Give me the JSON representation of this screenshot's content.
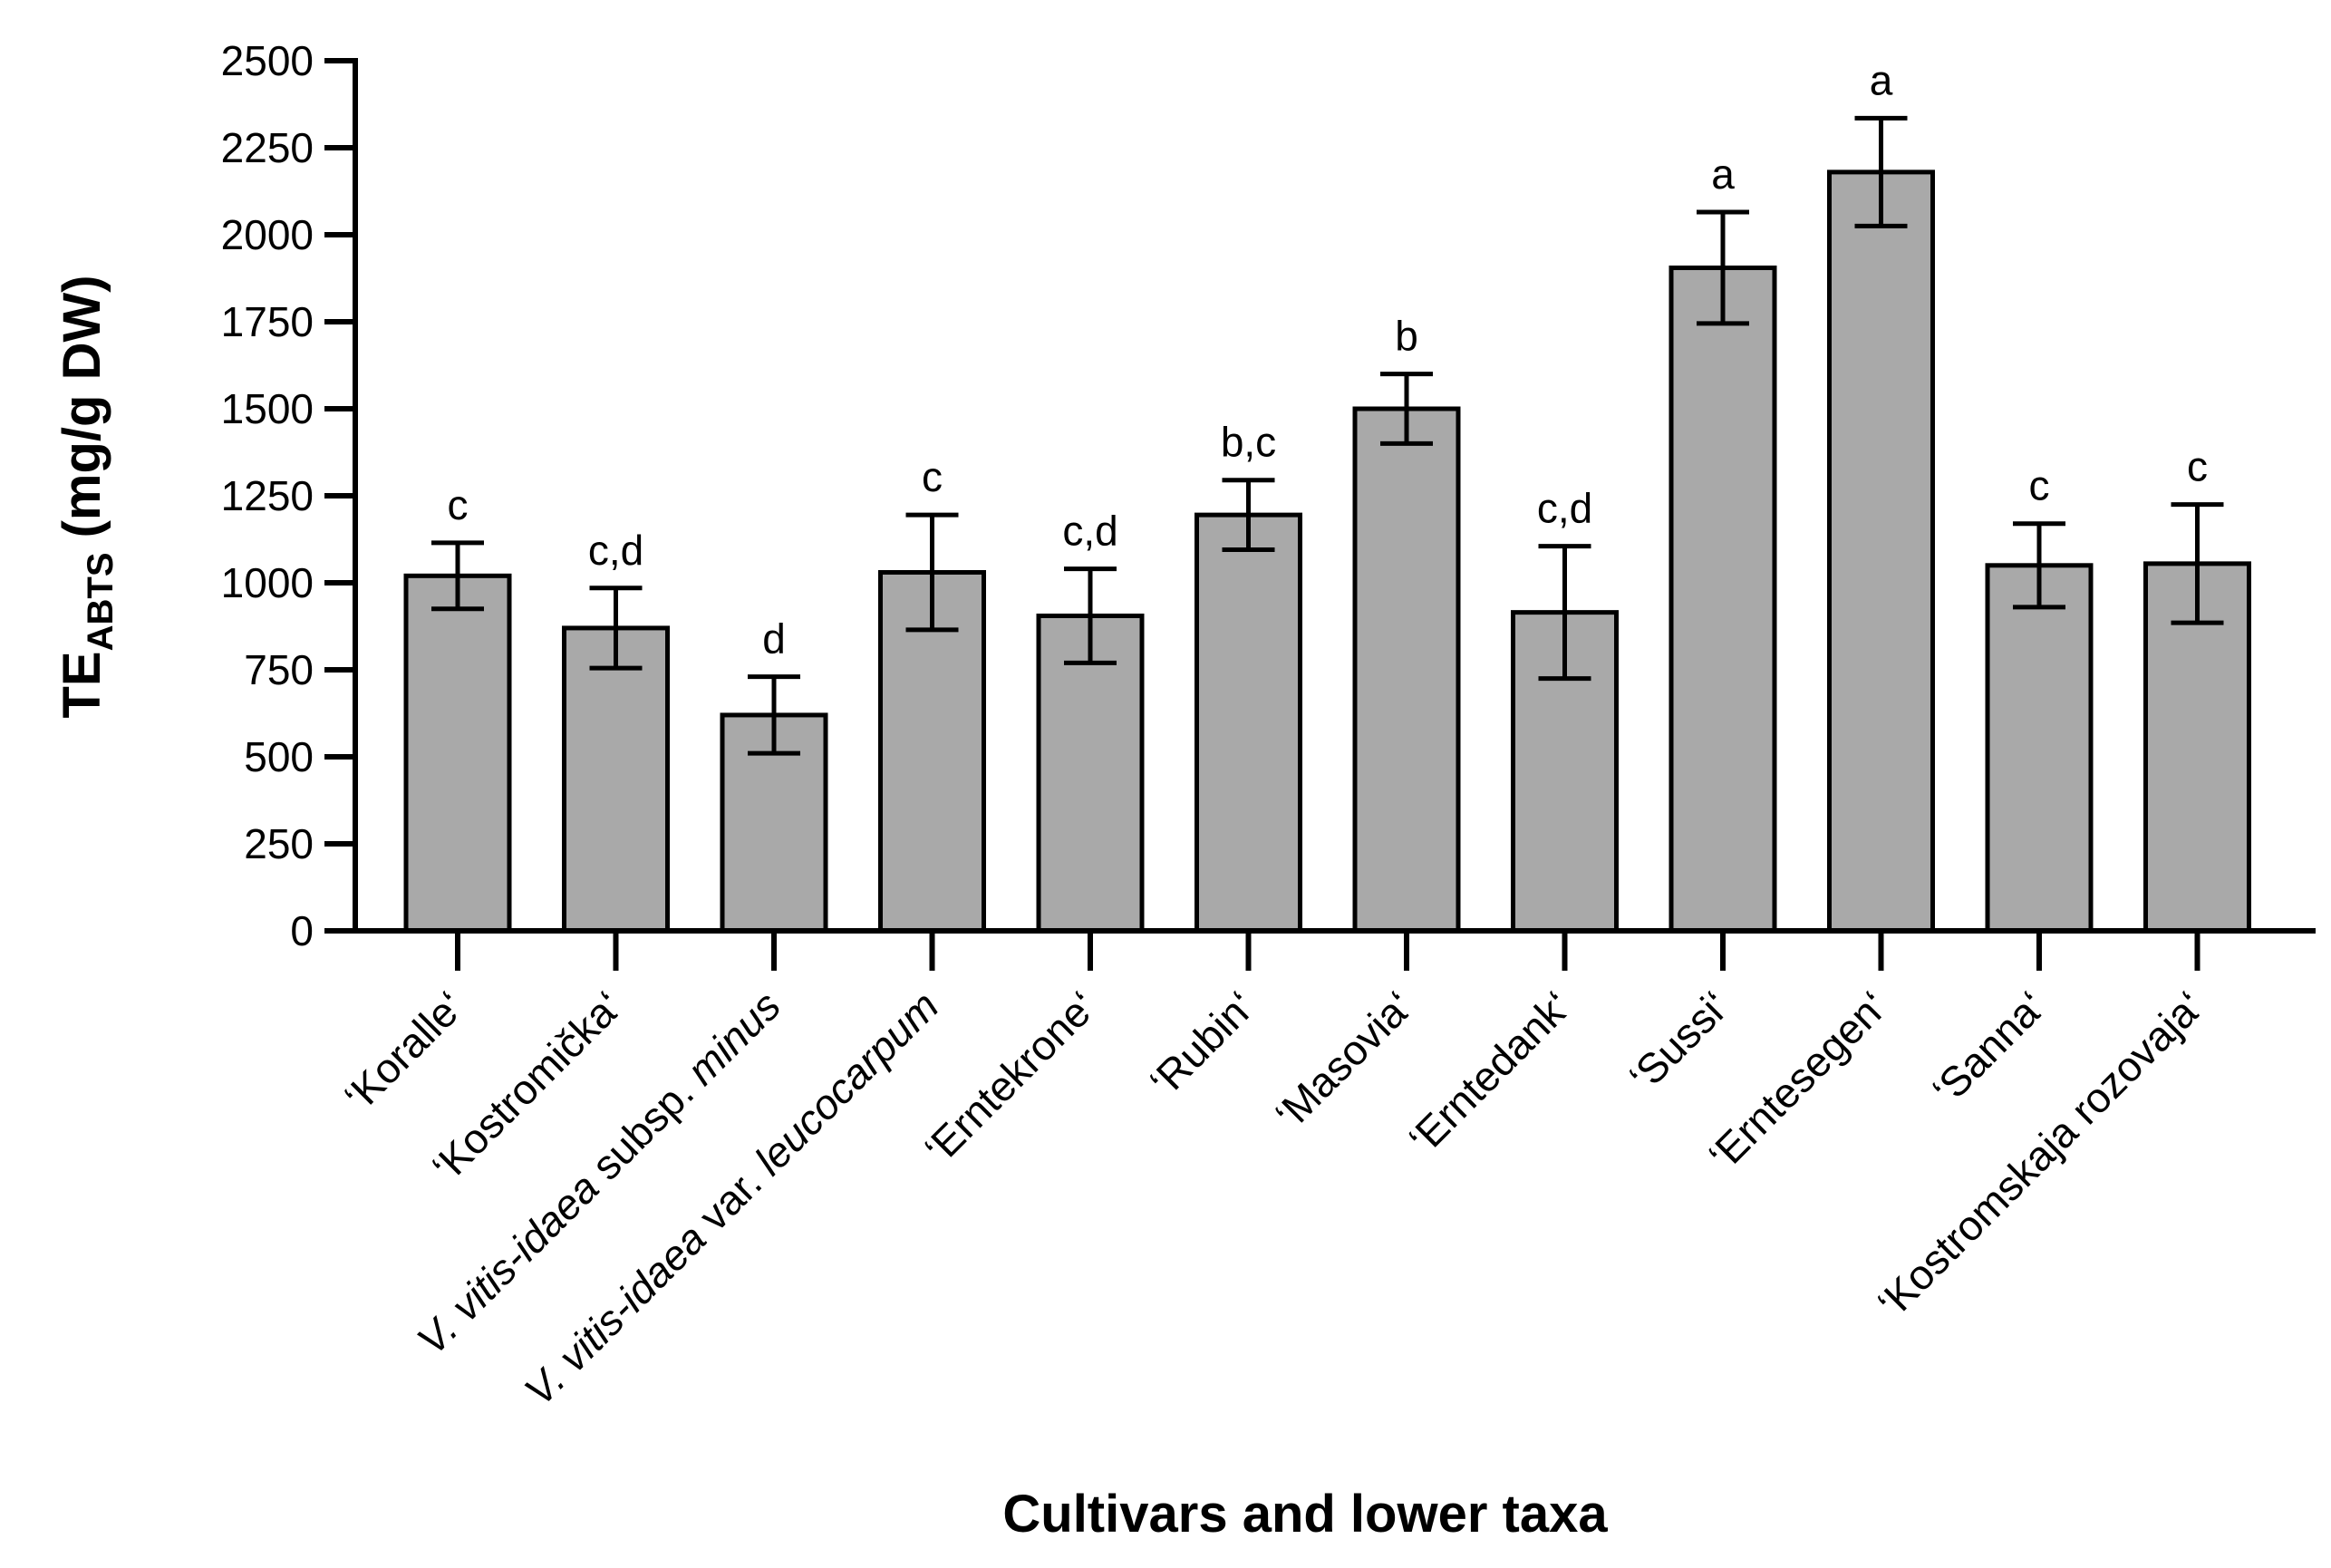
{
  "chart_data": {
    "type": "bar",
    "title": "",
    "xlabel": "Cultivars and lower taxa",
    "ylabel": {
      "main": "TE",
      "subscript": "ABTS",
      "unit": " (mg/g DW)"
    },
    "ylim": [
      0,
      2500
    ],
    "yticks": [
      "0",
      "250",
      "500",
      "750",
      "1000",
      "1250",
      "1500",
      "1750",
      "2000",
      "2250",
      "2500"
    ],
    "ytick_values": [
      0,
      250,
      500,
      750,
      1000,
      1250,
      1500,
      1750,
      2000,
      2250,
      2500
    ],
    "grid": false,
    "bar_color": "#a9a9a9",
    "categories": [
      {
        "parts": [
          {
            "text": "‘Koralle‘",
            "italic": false
          }
        ]
      },
      {
        "parts": [
          {
            "text": "‘Kostromička‘",
            "italic": false
          }
        ]
      },
      {
        "parts": [
          {
            "text": "V. vitis-idaea",
            "italic": true
          },
          {
            "text": " subsp. ",
            "italic": false
          },
          {
            "text": "minus",
            "italic": true
          }
        ]
      },
      {
        "parts": [
          {
            "text": "V. vitis-idaea",
            "italic": true
          },
          {
            "text": " var. ",
            "italic": false
          },
          {
            "text": "leucocarpum",
            "italic": true
          }
        ]
      },
      {
        "parts": [
          {
            "text": "‘Erntekrone‘",
            "italic": false
          }
        ]
      },
      {
        "parts": [
          {
            "text": "‘Rubin‘",
            "italic": false
          }
        ]
      },
      {
        "parts": [
          {
            "text": "‘Masovia‘",
            "italic": false
          }
        ]
      },
      {
        "parts": [
          {
            "text": "‘Erntedank‘",
            "italic": false
          }
        ]
      },
      {
        "parts": [
          {
            "text": "‘Sussi‘",
            "italic": false
          }
        ]
      },
      {
        "parts": [
          {
            "text": "‘Erntesegen‘",
            "italic": false
          }
        ]
      },
      {
        "parts": [
          {
            "text": "‘Sanna‘",
            "italic": false
          }
        ]
      },
      {
        "parts": [
          {
            "text": "‘Kostromskaja rozovaja‘",
            "italic": false
          }
        ]
      }
    ],
    "values": [
      1020,
      870,
      620,
      1030,
      905,
      1195,
      1500,
      915,
      1905,
      2180,
      1050,
      1055
    ],
    "errors": [
      95,
      115,
      110,
      165,
      135,
      100,
      100,
      190,
      160,
      155,
      120,
      170
    ],
    "significance": [
      "c",
      "c,d",
      "d",
      "c",
      "c,d",
      "b,c",
      "b",
      "c,d",
      "a",
      "a",
      "c",
      "c"
    ]
  }
}
